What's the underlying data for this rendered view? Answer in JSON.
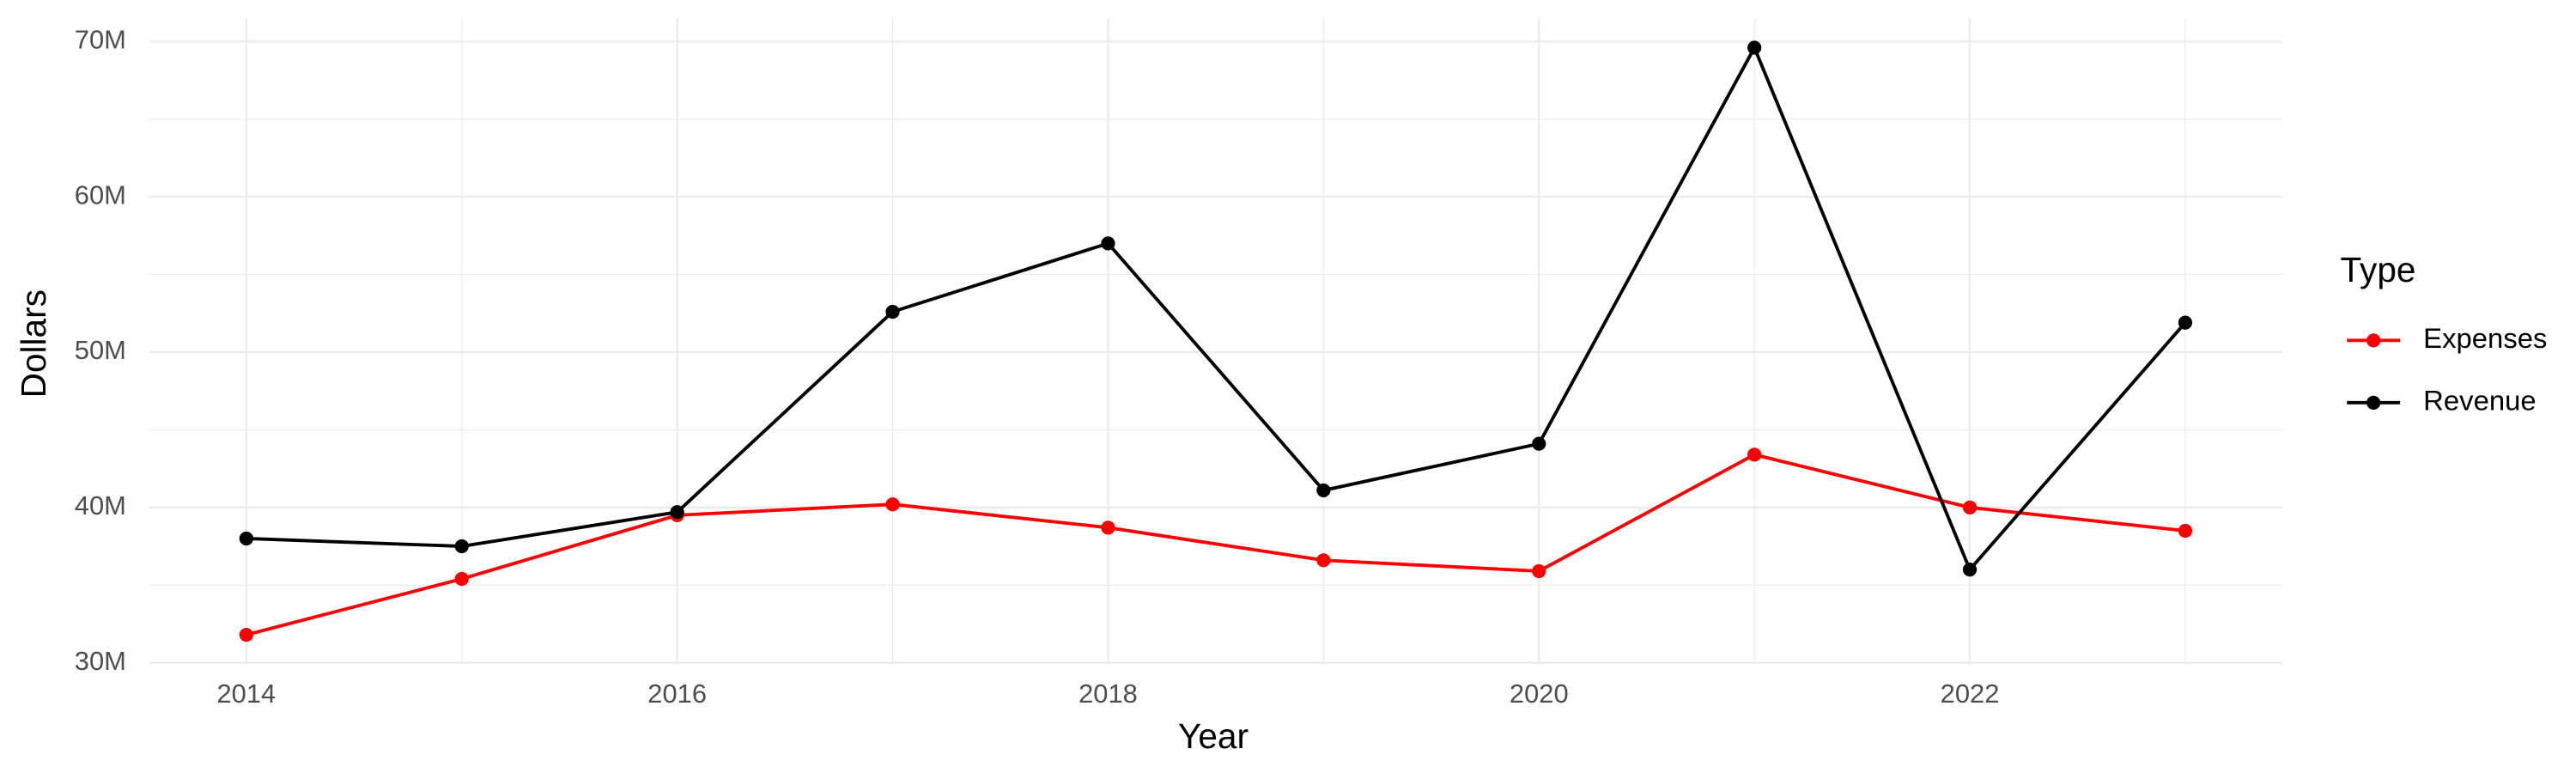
{
  "chart_data": {
    "type": "line",
    "x_label": "Year",
    "y_label": "Dollars",
    "legend_title": "Type",
    "legend": "right",
    "x": [
      2014,
      2015,
      2016,
      2017,
      2018,
      2019,
      2020,
      2021,
      2022,
      2023
    ],
    "series": [
      {
        "name": "Expenses",
        "color": "#ff0000",
        "values": [
          31800000,
          35400000,
          39500000,
          40200000,
          38700000,
          36600000,
          35900000,
          43400000,
          40000000,
          38500000
        ]
      },
      {
        "name": "Revenue",
        "color": "#000000",
        "values": [
          38000000,
          37500000,
          39700000,
          52600000,
          57000000,
          41100000,
          44100000,
          69600000,
          36000000,
          51900000
        ]
      }
    ],
    "xlim": [
      2013.55,
      2023.45
    ],
    "xticks": [
      2014,
      2016,
      2018,
      2020,
      2022
    ],
    "x_minor_ticks": [
      2015,
      2017,
      2019,
      2021,
      2023
    ],
    "ylim": [
      29910000,
      71490000
    ],
    "yticks": [
      {
        "value": 30000000,
        "label": "30M"
      },
      {
        "value": 40000000,
        "label": "40M"
      },
      {
        "value": 50000000,
        "label": "50M"
      },
      {
        "value": 60000000,
        "label": "60M"
      },
      {
        "value": 70000000,
        "label": "70M"
      }
    ],
    "y_minor_ticks": [
      35000000,
      45000000,
      55000000,
      65000000
    ],
    "grid": true
  }
}
